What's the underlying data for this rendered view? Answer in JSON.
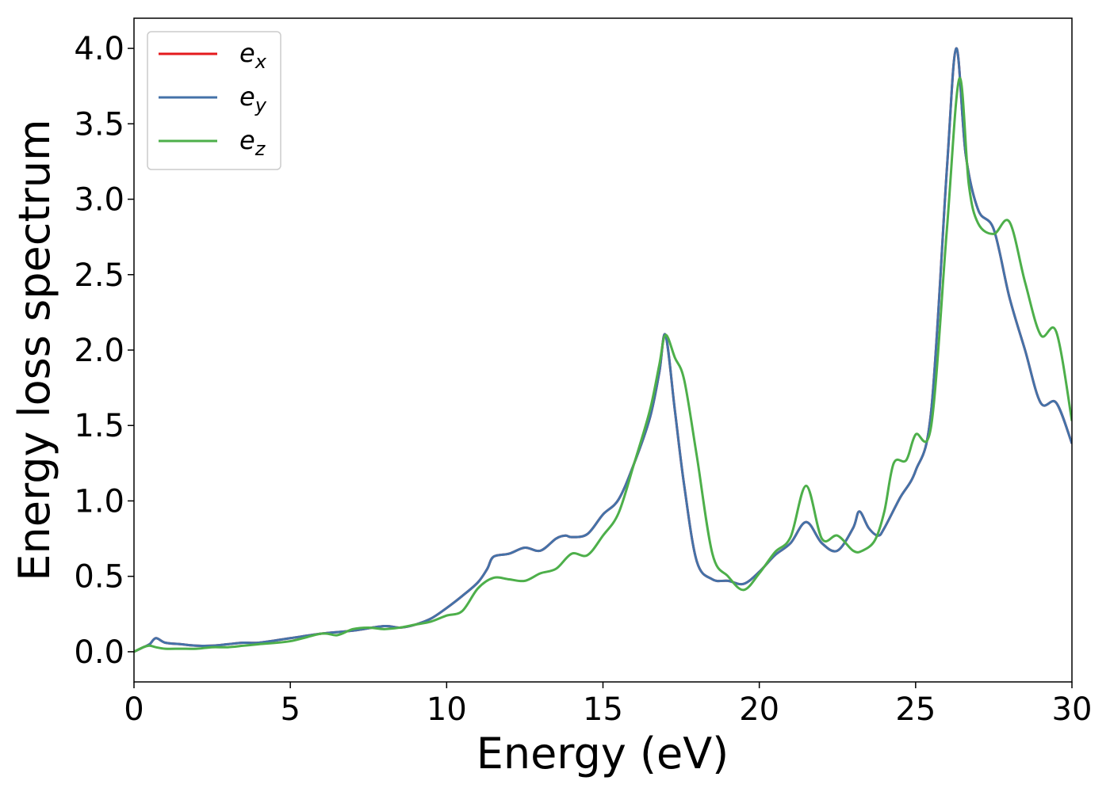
{
  "chart_data": {
    "type": "line",
    "xlabel": "Energy (eV)",
    "ylabel": "Energy loss spectrum",
    "xlim": [
      0,
      30
    ],
    "ylim": [
      -0.2,
      4.2
    ],
    "xticks": [
      0,
      5,
      10,
      15,
      20,
      25,
      30
    ],
    "yticks": [
      0.0,
      0.5,
      1.0,
      1.5,
      2.0,
      2.5,
      3.0,
      3.5,
      4.0
    ],
    "grid": false,
    "legend_position": "top-left",
    "series": [
      {
        "name": "e",
        "sub": "x",
        "color": "#e41a1c",
        "x": [
          0,
          0.3,
          0.5,
          0.7,
          1.0,
          1.5,
          2.0,
          2.5,
          3.0,
          3.5,
          4.0,
          5.0,
          6.0,
          7.0,
          8.0,
          8.5,
          9.0,
          9.5,
          10.0,
          10.5,
          11.0,
          11.3,
          11.5,
          12.0,
          12.5,
          13.0,
          13.5,
          13.8,
          14.0,
          14.5,
          15.0,
          15.5,
          16.0,
          16.5,
          16.8,
          17.0,
          17.3,
          17.6,
          18.0,
          18.5,
          19.0,
          19.5,
          20.0,
          20.5,
          21.0,
          21.5,
          22.0,
          22.5,
          23.0,
          23.2,
          23.5,
          23.8,
          24.0,
          24.5,
          25.0,
          25.5,
          26.0,
          26.3,
          26.6,
          27.0,
          27.5,
          28.0,
          28.5,
          29.0,
          29.5,
          30.0
        ],
        "y": [
          0.0,
          0.03,
          0.05,
          0.09,
          0.06,
          0.05,
          0.04,
          0.04,
          0.05,
          0.06,
          0.06,
          0.09,
          0.12,
          0.14,
          0.17,
          0.16,
          0.18,
          0.22,
          0.29,
          0.37,
          0.46,
          0.55,
          0.63,
          0.65,
          0.69,
          0.67,
          0.75,
          0.77,
          0.76,
          0.78,
          0.91,
          1.01,
          1.25,
          1.55,
          1.85,
          2.1,
          1.6,
          1.1,
          0.6,
          0.48,
          0.47,
          0.45,
          0.53,
          0.64,
          0.72,
          0.86,
          0.72,
          0.67,
          0.82,
          0.93,
          0.82,
          0.77,
          0.82,
          1.02,
          1.2,
          1.6,
          3.2,
          4.0,
          3.3,
          2.93,
          2.8,
          2.35,
          2.0,
          1.65,
          1.65,
          1.38
        ]
      },
      {
        "name": "e",
        "sub": "y",
        "color": "#4472a8",
        "x": [
          0,
          0.3,
          0.5,
          0.7,
          1.0,
          1.5,
          2.0,
          2.5,
          3.0,
          3.5,
          4.0,
          5.0,
          6.0,
          7.0,
          8.0,
          8.5,
          9.0,
          9.5,
          10.0,
          10.5,
          11.0,
          11.3,
          11.5,
          12.0,
          12.5,
          13.0,
          13.5,
          13.8,
          14.0,
          14.5,
          15.0,
          15.5,
          16.0,
          16.5,
          16.8,
          17.0,
          17.3,
          17.6,
          18.0,
          18.5,
          19.0,
          19.5,
          20.0,
          20.5,
          21.0,
          21.5,
          22.0,
          22.5,
          23.0,
          23.2,
          23.5,
          23.8,
          24.0,
          24.5,
          25.0,
          25.5,
          26.0,
          26.3,
          26.6,
          27.0,
          27.5,
          28.0,
          28.5,
          29.0,
          29.5,
          30.0
        ],
        "y": [
          0.0,
          0.03,
          0.05,
          0.09,
          0.06,
          0.05,
          0.04,
          0.04,
          0.05,
          0.06,
          0.06,
          0.09,
          0.12,
          0.14,
          0.17,
          0.16,
          0.18,
          0.22,
          0.29,
          0.37,
          0.46,
          0.55,
          0.63,
          0.65,
          0.69,
          0.67,
          0.75,
          0.77,
          0.76,
          0.78,
          0.91,
          1.01,
          1.25,
          1.55,
          1.85,
          2.1,
          1.6,
          1.1,
          0.6,
          0.48,
          0.47,
          0.45,
          0.53,
          0.64,
          0.72,
          0.86,
          0.72,
          0.67,
          0.82,
          0.93,
          0.82,
          0.77,
          0.82,
          1.02,
          1.2,
          1.6,
          3.2,
          4.0,
          3.3,
          2.93,
          2.8,
          2.35,
          2.0,
          1.65,
          1.65,
          1.38
        ]
      },
      {
        "name": "e",
        "sub": "z",
        "color": "#4daf4a",
        "x": [
          0,
          0.3,
          0.5,
          0.7,
          1.0,
          1.5,
          2.0,
          2.5,
          3.0,
          3.5,
          4.0,
          5.0,
          6.0,
          6.5,
          7.0,
          7.5,
          8.0,
          8.5,
          9.0,
          9.5,
          10.0,
          10.5,
          11.0,
          11.5,
          12.0,
          12.5,
          13.0,
          13.5,
          14.0,
          14.5,
          15.0,
          15.5,
          16.0,
          16.5,
          16.8,
          17.0,
          17.3,
          17.6,
          18.0,
          18.5,
          19.0,
          19.5,
          20.0,
          20.5,
          21.0,
          21.5,
          22.0,
          22.5,
          23.0,
          23.3,
          23.7,
          24.0,
          24.3,
          24.7,
          25.0,
          25.5,
          26.0,
          26.4,
          26.7,
          27.0,
          27.5,
          28.0,
          28.5,
          29.0,
          29.5,
          30.0
        ],
        "y": [
          0.0,
          0.03,
          0.04,
          0.03,
          0.02,
          0.02,
          0.02,
          0.03,
          0.03,
          0.04,
          0.05,
          0.07,
          0.12,
          0.11,
          0.15,
          0.16,
          0.15,
          0.16,
          0.18,
          0.2,
          0.24,
          0.27,
          0.42,
          0.49,
          0.48,
          0.47,
          0.52,
          0.55,
          0.65,
          0.64,
          0.77,
          0.92,
          1.25,
          1.6,
          1.9,
          2.1,
          1.95,
          1.8,
          1.3,
          0.65,
          0.5,
          0.41,
          0.52,
          0.66,
          0.76,
          1.1,
          0.75,
          0.77,
          0.67,
          0.67,
          0.74,
          0.93,
          1.25,
          1.27,
          1.44,
          1.5,
          2.8,
          3.8,
          3.1,
          2.84,
          2.77,
          2.85,
          2.45,
          2.1,
          2.12,
          1.53
        ]
      }
    ]
  }
}
